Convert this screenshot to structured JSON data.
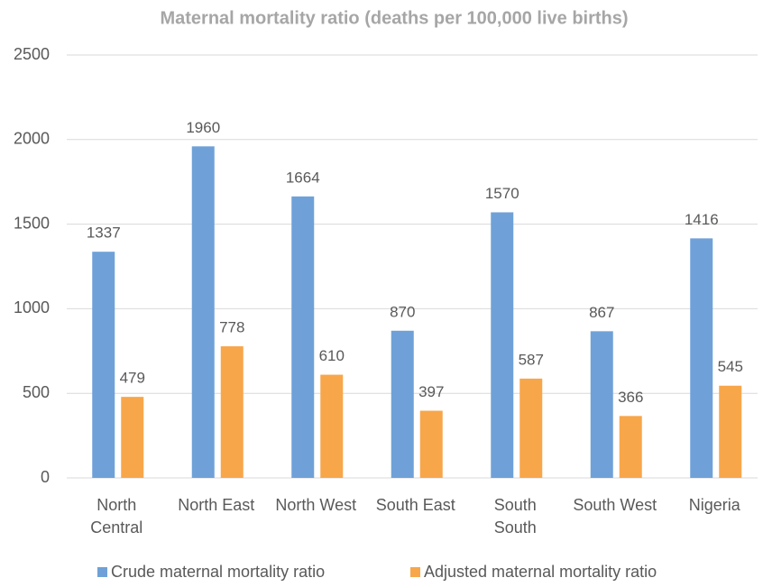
{
  "chart_data": {
    "type": "bar",
    "title": "Maternal mortality ratio (deaths per 100,000 live births)",
    "categories": [
      "North\nCentral",
      "North East",
      "North West",
      "South East",
      "South\nSouth",
      "South West",
      "Nigeria"
    ],
    "series": [
      {
        "name": "Crude maternal mortality ratio",
        "color": "#6fa1d8",
        "values": [
          1337,
          1960,
          1664,
          870,
          1570,
          867,
          1416
        ]
      },
      {
        "name": "Adjusted maternal mortality ratio",
        "color": "#f8a64a",
        "values": [
          479,
          778,
          610,
          397,
          587,
          366,
          545
        ]
      }
    ],
    "ylim": [
      0,
      2500
    ],
    "yticks": [
      0,
      500,
      1000,
      1500,
      2000,
      2500
    ],
    "grid": true,
    "legend": "bottom"
  }
}
